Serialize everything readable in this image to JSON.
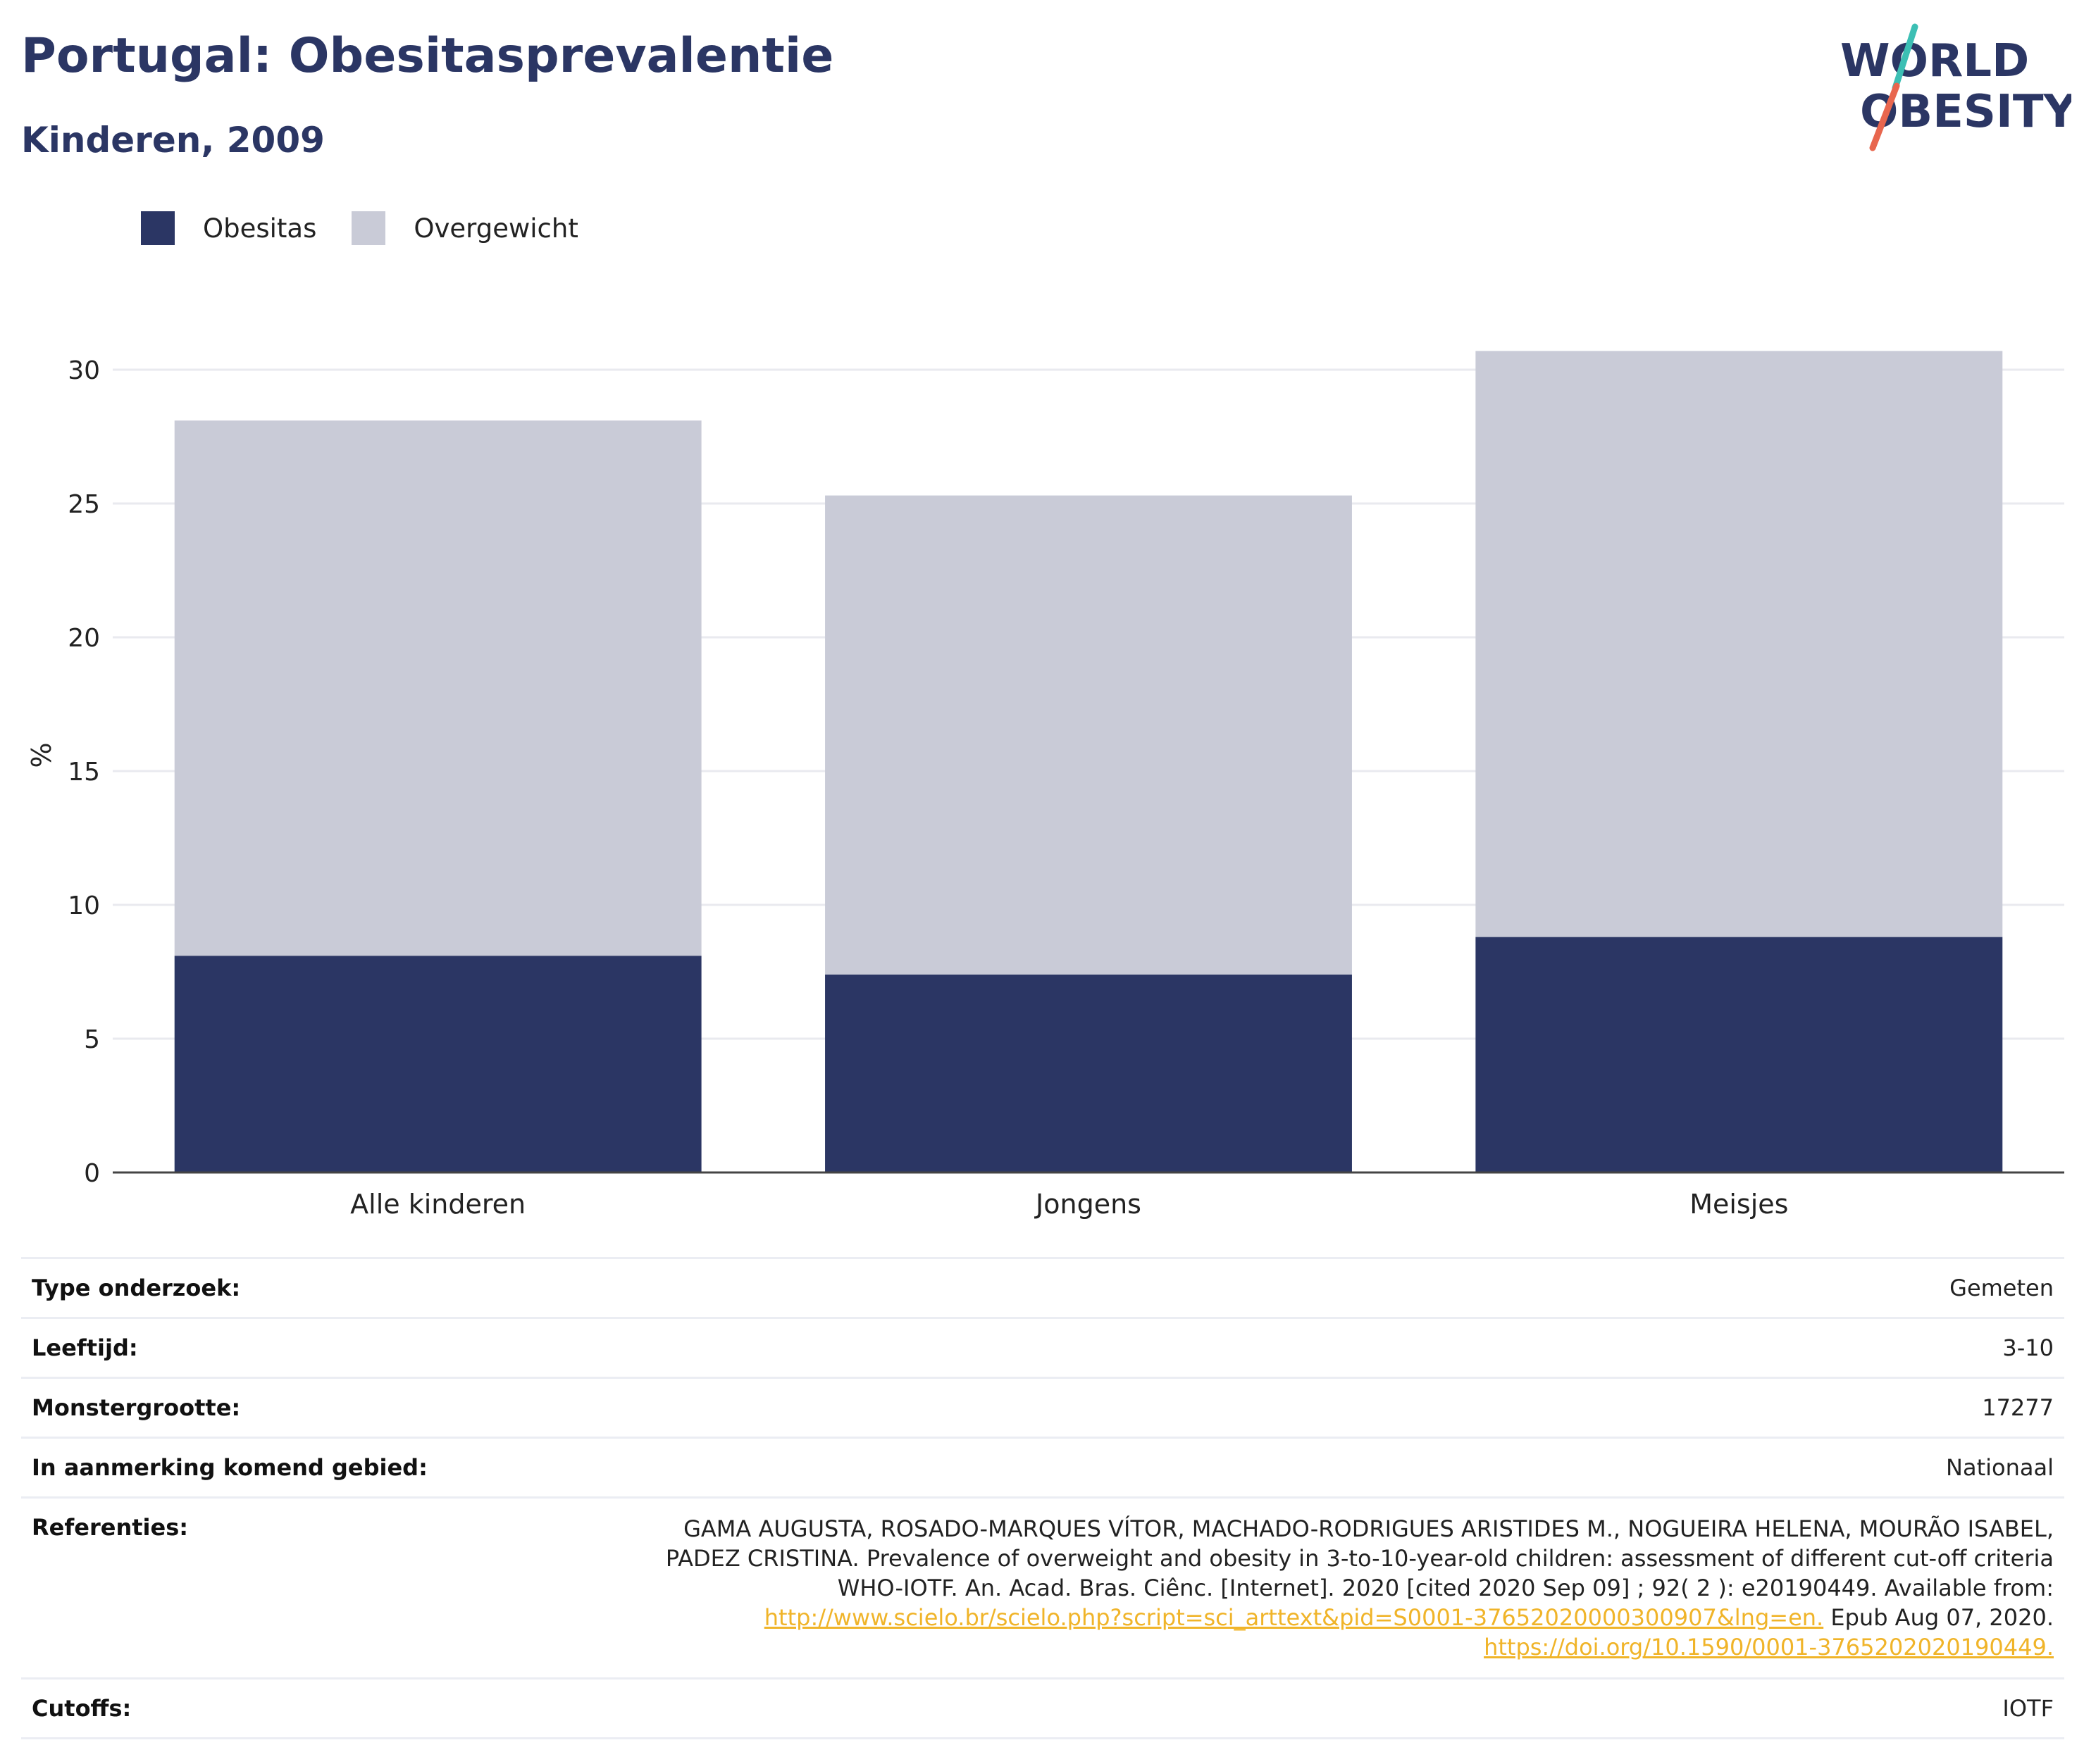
{
  "header": {
    "title": "Portugal: Obesitasprevalentie",
    "subtitle": "Kinderen, 2009"
  },
  "logo": {
    "line1": "WORLD",
    "line2": "OBESITY"
  },
  "colors": {
    "obesity": "#2b3664",
    "overweight": "#c9cbd7",
    "accent_teal": "#3cbfb4",
    "accent_red": "#e8664e",
    "link": "#f0b429"
  },
  "chart_data": {
    "type": "bar",
    "stacked": true,
    "categories": [
      "Alle kinderen",
      "Jongens",
      "Meisjes"
    ],
    "series": [
      {
        "name": "Obesitas",
        "values": [
          8.1,
          7.4,
          8.8
        ]
      },
      {
        "name": "Overgewicht",
        "values": [
          20.0,
          17.9,
          21.9
        ]
      }
    ],
    "ylabel": "%",
    "ylim": [
      0,
      30
    ],
    "yticks": [
      "0",
      "5",
      "10",
      "15",
      "20",
      "25",
      "30"
    ],
    "grid": true,
    "legend_position": "top-left"
  },
  "meta": [
    {
      "label": "Type onderzoek:",
      "value": "Gemeten"
    },
    {
      "label": "Leeftijd:",
      "value": "3-10"
    },
    {
      "label": "Monstergrootte:",
      "value": "17277"
    },
    {
      "label": "In aanmerking komend gebied:",
      "value": "Nationaal"
    }
  ],
  "references": {
    "label": "Referenties:",
    "text": "GAMA AUGUSTA, ROSADO-MARQUES VÍTOR, MACHADO-RODRIGUES ARISTIDES M., NOGUEIRA HELENA, MOURÃO ISABEL, PADEZ CRISTINA. Prevalence of overweight and obesity in 3-to-10-year-old children: assessment of different cut-off criteria WHO-IOTF. An. Acad. Bras. Ciênc. [Internet]. 2020 [cited 2020 Sep 09] ; 92( 2 ): e20190449. Available from:",
    "link1": "http://www.scielo.br/scielo.php?script=sci_arttext&pid=S0001-37652020000300907&lng=en.",
    "text2": "Epub Aug 07, 2020.",
    "link2": "https://doi.org/10.1590/0001-3765202020190449."
  },
  "cutoffs": {
    "label": "Cutoffs:",
    "value": "IOTF"
  }
}
